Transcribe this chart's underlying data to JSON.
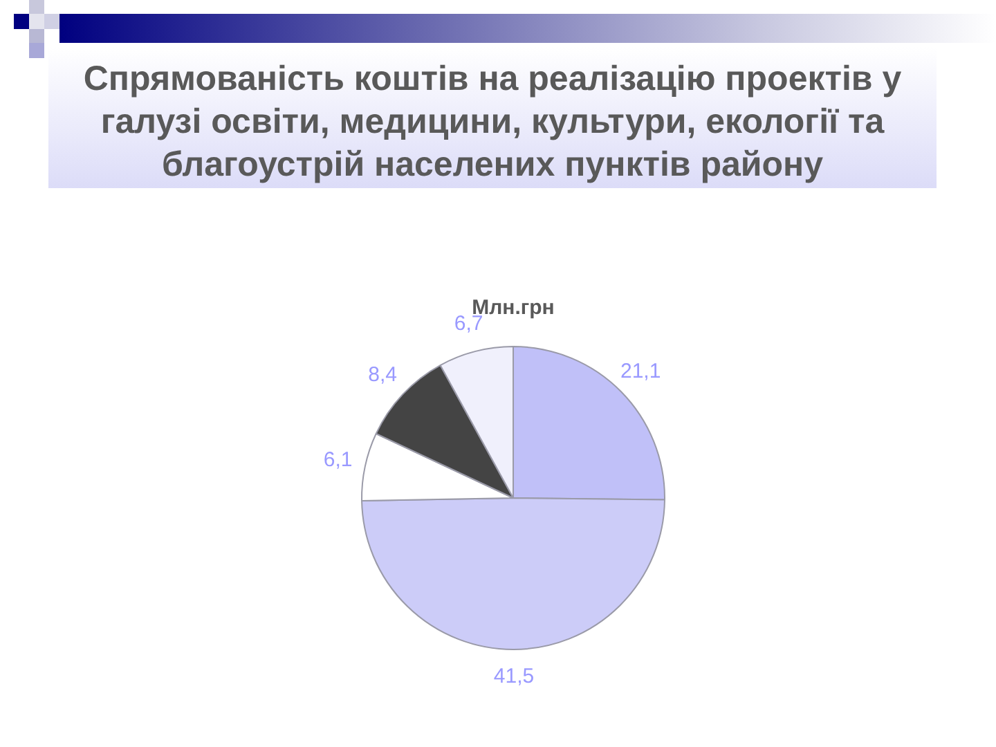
{
  "chart_data": {
    "type": "pie",
    "title": "Спрямованість коштів на реалізацію проектів у галузі освіти, медицини, культури, екології та благоустрій населених пунктів району",
    "subtitle": "Млн.грн",
    "categories": [
      null,
      null,
      null,
      null,
      null
    ],
    "values": [
      21.1,
      41.5,
      6.1,
      8.4,
      6.7
    ],
    "colors": [
      "#c0c0f8",
      "#ccccf8",
      "#ffffff",
      "#444444",
      "#f0f0fc"
    ],
    "value_labels": [
      "21,1",
      "41,5",
      "6,1",
      "8,4",
      "6,7"
    ],
    "legend": false
  }
}
